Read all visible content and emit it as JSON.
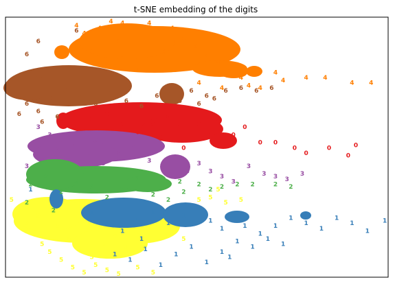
{
  "chart_data": {
    "type": "scatter",
    "title": "t-SNE embedding of the digits",
    "xlabel": "",
    "ylabel": "",
    "xlim": [
      0,
      1
    ],
    "ylim": [
      0,
      1
    ],
    "grid": false,
    "ticks": false,
    "colors": {
      "0": "#e41a1c",
      "1": "#377eb8",
      "2": "#4daf4a",
      "3": "#984ea3",
      "4": "#ff7f00",
      "5": "#ffff33",
      "6": "#a65628"
    },
    "series": [
      {
        "label": "4",
        "points": [
          [
            0.18,
            0.96
          ],
          [
            0.2,
            0.93
          ],
          [
            0.24,
            0.95
          ],
          [
            0.27,
            0.99
          ],
          [
            0.3,
            0.97
          ],
          [
            0.33,
            0.95
          ],
          [
            0.37,
            0.97
          ],
          [
            0.4,
            0.94
          ],
          [
            0.43,
            0.95
          ],
          [
            0.46,
            0.91
          ],
          [
            0.49,
            0.88
          ],
          [
            0.52,
            0.84
          ],
          [
            0.55,
            0.82
          ],
          [
            0.58,
            0.79
          ],
          [
            0.61,
            0.76
          ],
          [
            0.63,
            0.73
          ],
          [
            0.66,
            0.72
          ],
          [
            0.7,
            0.78
          ],
          [
            0.72,
            0.75
          ],
          [
            0.78,
            0.76
          ],
          [
            0.83,
            0.76
          ],
          [
            0.9,
            0.74
          ],
          [
            0.95,
            0.74
          ],
          [
            0.22,
            0.86
          ],
          [
            0.26,
            0.81
          ],
          [
            0.3,
            0.84
          ],
          [
            0.34,
            0.79
          ],
          [
            0.14,
            0.85
          ],
          [
            0.29,
            0.9
          ],
          [
            0.41,
            0.86
          ],
          [
            0.5,
            0.74
          ],
          [
            0.56,
            0.72
          ]
        ]
      },
      {
        "label": "6",
        "points": [
          [
            0.0,
            0.73
          ],
          [
            0.02,
            0.7
          ],
          [
            0.05,
            0.66
          ],
          [
            0.08,
            0.63
          ],
          [
            0.11,
            0.68
          ],
          [
            0.15,
            0.71
          ],
          [
            0.19,
            0.69
          ],
          [
            0.23,
            0.66
          ],
          [
            0.27,
            0.7
          ],
          [
            0.31,
            0.67
          ],
          [
            0.35,
            0.65
          ],
          [
            0.39,
            0.69
          ],
          [
            0.42,
            0.7
          ],
          [
            0.45,
            0.67
          ],
          [
            0.48,
            0.71
          ],
          [
            0.52,
            0.69
          ],
          [
            0.57,
            0.71
          ],
          [
            0.61,
            0.72
          ],
          [
            0.65,
            0.71
          ],
          [
            0.69,
            0.72
          ],
          [
            0.08,
            0.9
          ],
          [
            0.05,
            0.85
          ],
          [
            0.18,
            0.94
          ],
          [
            0.03,
            0.62
          ],
          [
            0.09,
            0.59
          ],
          [
            0.13,
            0.61
          ],
          [
            0.5,
            0.66
          ],
          [
            0.54,
            0.68
          ]
        ]
      },
      {
        "label": "0",
        "points": [
          [
            0.14,
            0.59
          ],
          [
            0.18,
            0.57
          ],
          [
            0.22,
            0.6
          ],
          [
            0.26,
            0.62
          ],
          [
            0.3,
            0.58
          ],
          [
            0.34,
            0.55
          ],
          [
            0.38,
            0.58
          ],
          [
            0.42,
            0.61
          ],
          [
            0.45,
            0.57
          ],
          [
            0.48,
            0.54
          ],
          [
            0.5,
            0.58
          ],
          [
            0.53,
            0.55
          ],
          [
            0.56,
            0.51
          ],
          [
            0.59,
            0.54
          ],
          [
            0.62,
            0.57
          ],
          [
            0.66,
            0.51
          ],
          [
            0.7,
            0.51
          ],
          [
            0.75,
            0.49
          ],
          [
            0.78,
            0.47
          ],
          [
            0.84,
            0.49
          ],
          [
            0.89,
            0.46
          ],
          [
            0.91,
            0.5
          ],
          [
            0.46,
            0.49
          ],
          [
            0.4,
            0.53
          ],
          [
            0.55,
            0.6
          ]
        ]
      },
      {
        "label": "3",
        "points": [
          [
            0.05,
            0.42
          ],
          [
            0.09,
            0.45
          ],
          [
            0.13,
            0.48
          ],
          [
            0.17,
            0.5
          ],
          [
            0.21,
            0.46
          ],
          [
            0.25,
            0.43
          ],
          [
            0.29,
            0.47
          ],
          [
            0.33,
            0.5
          ],
          [
            0.37,
            0.44
          ],
          [
            0.41,
            0.41
          ],
          [
            0.44,
            0.38
          ],
          [
            0.47,
            0.4
          ],
          [
            0.5,
            0.43
          ],
          [
            0.53,
            0.4
          ],
          [
            0.56,
            0.38
          ],
          [
            0.59,
            0.36
          ],
          [
            0.63,
            0.42
          ],
          [
            0.67,
            0.39
          ],
          [
            0.7,
            0.38
          ],
          [
            0.73,
            0.37
          ],
          [
            0.77,
            0.39
          ],
          [
            0.08,
            0.57
          ],
          [
            0.11,
            0.54
          ],
          [
            0.23,
            0.52
          ]
        ]
      },
      {
        "label": "2",
        "points": [
          [
            0.06,
            0.35
          ],
          [
            0.1,
            0.38
          ],
          [
            0.14,
            0.32
          ],
          [
            0.18,
            0.36
          ],
          [
            0.22,
            0.34
          ],
          [
            0.26,
            0.3
          ],
          [
            0.3,
            0.33
          ],
          [
            0.34,
            0.37
          ],
          [
            0.38,
            0.31
          ],
          [
            0.42,
            0.29
          ],
          [
            0.46,
            0.32
          ],
          [
            0.5,
            0.35
          ],
          [
            0.53,
            0.33
          ],
          [
            0.56,
            0.34
          ],
          [
            0.6,
            0.35
          ],
          [
            0.64,
            0.35
          ],
          [
            0.7,
            0.35
          ],
          [
            0.74,
            0.34
          ],
          [
            0.05,
            0.28
          ],
          [
            0.12,
            0.25
          ],
          [
            0.45,
            0.36
          ]
        ]
      },
      {
        "label": "1",
        "points": [
          [
            0.06,
            0.33
          ],
          [
            0.12,
            0.28
          ],
          [
            0.22,
            0.24
          ],
          [
            0.26,
            0.2
          ],
          [
            0.3,
            0.17
          ],
          [
            0.34,
            0.21
          ],
          [
            0.38,
            0.24
          ],
          [
            0.42,
            0.2
          ],
          [
            0.46,
            0.23
          ],
          [
            0.5,
            0.26
          ],
          [
            0.53,
            0.21
          ],
          [
            0.56,
            0.18
          ],
          [
            0.59,
            0.23
          ],
          [
            0.62,
            0.19
          ],
          [
            0.66,
            0.16
          ],
          [
            0.7,
            0.19
          ],
          [
            0.74,
            0.22
          ],
          [
            0.78,
            0.2
          ],
          [
            0.82,
            0.18
          ],
          [
            0.86,
            0.22
          ],
          [
            0.9,
            0.2
          ],
          [
            0.94,
            0.17
          ],
          [
            0.99,
            0.21
          ],
          [
            0.28,
            0.08
          ],
          [
            0.32,
            0.06
          ],
          [
            0.36,
            0.1
          ],
          [
            0.4,
            0.04
          ],
          [
            0.44,
            0.08
          ],
          [
            0.48,
            0.11
          ],
          [
            0.52,
            0.05
          ],
          [
            0.56,
            0.09
          ],
          [
            0.6,
            0.13
          ],
          [
            0.64,
            0.11
          ],
          [
            0.68,
            0.14
          ],
          [
            0.72,
            0.12
          ],
          [
            0.35,
            0.14
          ],
          [
            0.58,
            0.07
          ]
        ]
      },
      {
        "label": "5",
        "points": [
          [
            0.01,
            0.29
          ],
          [
            0.03,
            0.24
          ],
          [
            0.05,
            0.2
          ],
          [
            0.07,
            0.16
          ],
          [
            0.09,
            0.12
          ],
          [
            0.11,
            0.09
          ],
          [
            0.14,
            0.06
          ],
          [
            0.17,
            0.03
          ],
          [
            0.2,
            0.01
          ],
          [
            0.23,
            0.04
          ],
          [
            0.26,
            0.02
          ],
          [
            0.29,
            0.0
          ],
          [
            0.13,
            0.19
          ],
          [
            0.16,
            0.14
          ],
          [
            0.19,
            0.1
          ],
          [
            0.22,
            0.07
          ],
          [
            0.25,
            0.12
          ],
          [
            0.28,
            0.15
          ],
          [
            0.31,
            0.11
          ],
          [
            0.34,
            0.03
          ],
          [
            0.38,
            0.01
          ],
          [
            0.08,
            0.23
          ],
          [
            0.42,
            0.15
          ],
          [
            0.46,
            0.14
          ],
          [
            0.5,
            0.29
          ],
          [
            0.53,
            0.3
          ],
          [
            0.57,
            0.28
          ],
          [
            0.61,
            0.29
          ],
          [
            0.55,
            0.33
          ]
        ]
      }
    ]
  }
}
